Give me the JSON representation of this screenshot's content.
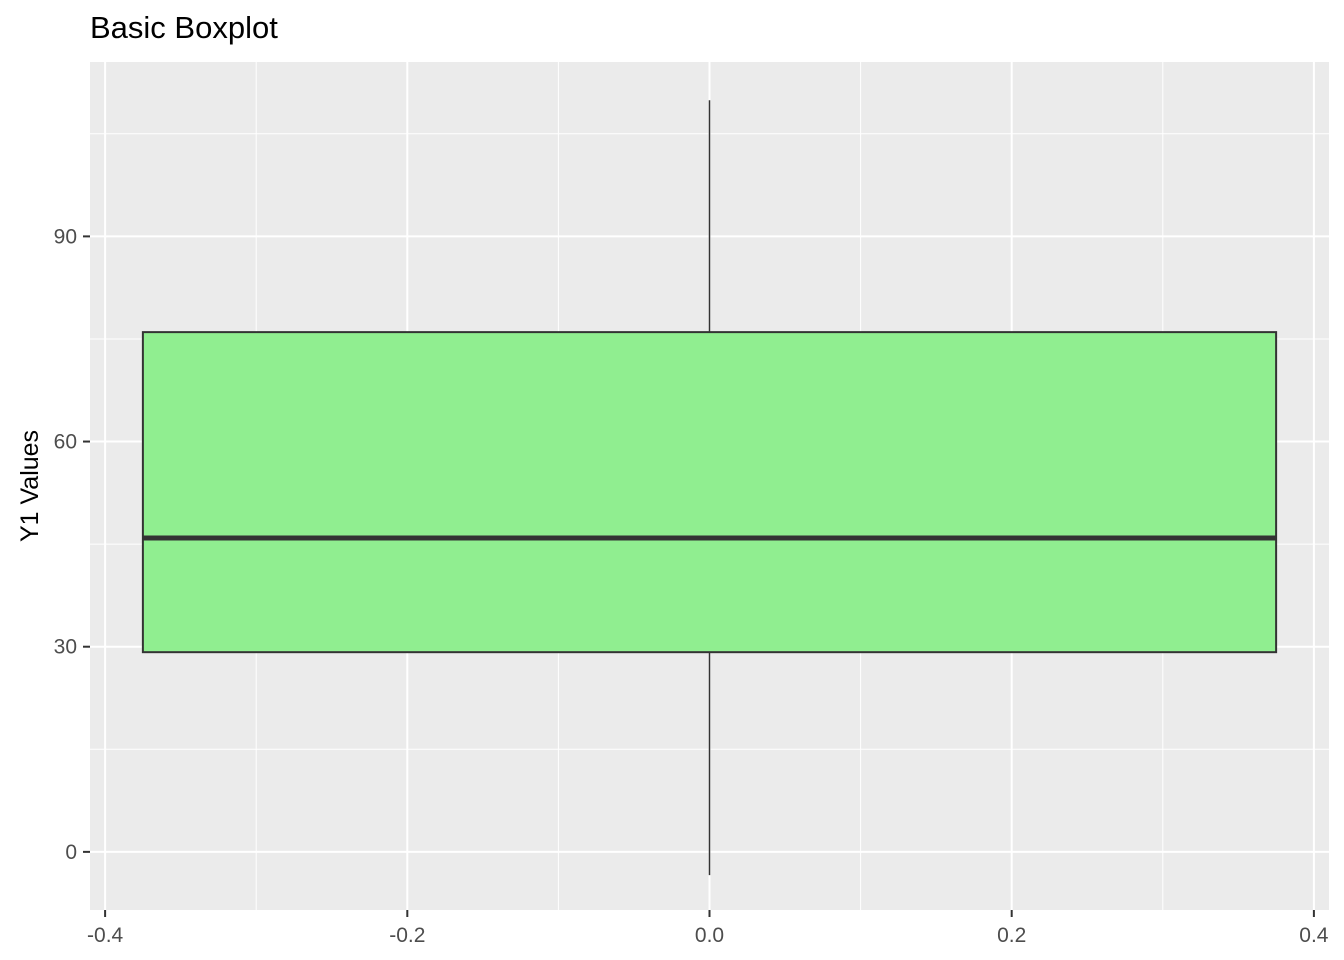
{
  "chart_data": {
    "type": "boxplot",
    "title": "Basic Boxplot",
    "xlabel": "",
    "ylabel": "Y1 Values",
    "xlim": [
      -0.41,
      0.41
    ],
    "ylim": [
      -8.5,
      115.5
    ],
    "x_ticks": [
      -0.4,
      -0.2,
      0.0,
      0.2,
      0.4
    ],
    "x_tick_labels": [
      "-0.4",
      "-0.2",
      "0.0",
      "0.2",
      "0.4"
    ],
    "y_ticks": [
      0,
      30,
      60,
      90
    ],
    "y_tick_labels": [
      "0",
      "30",
      "60",
      "90"
    ],
    "grid": true,
    "box": {
      "x_center": 0.0,
      "x_left": -0.375,
      "x_right": 0.375,
      "whisker_low": -3.4,
      "q1": 29.2,
      "median": 45.9,
      "q3": 76.0,
      "whisker_high": 109.9
    },
    "colors": {
      "panel_background": "#EBEBEB",
      "gridline": "#FFFFFF",
      "box_fill": "#90EE90",
      "box_outline": "#333333",
      "tick_text": "#4D4D4D"
    }
  }
}
